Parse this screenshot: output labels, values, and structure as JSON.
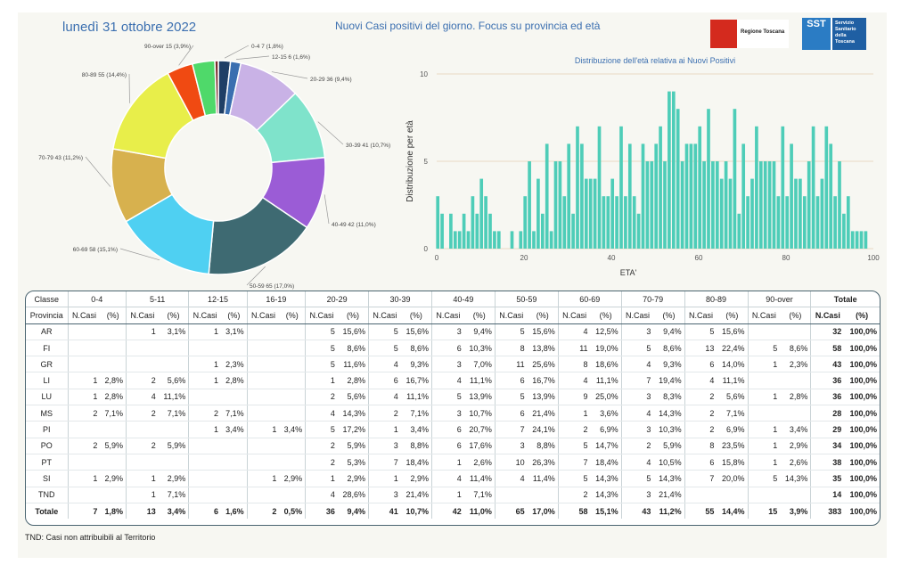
{
  "header": {
    "date": "lunedì 31 ottobre 2022",
    "headline": "Nuovi Casi positivi del giorno. Focus su provincia ed età",
    "logo_regione": "Regione Toscana",
    "logo_sst": "SST",
    "logo_sst_text": "Servizio Sanitario della Toscana"
  },
  "chart_data": [
    {
      "type": "pie",
      "title": "",
      "categories": [
        "0-4",
        "12-15",
        "20-29",
        "30-39",
        "40-49",
        "50-59",
        "60-69",
        "70-79",
        "80-89",
        "90-over",
        "5-11",
        "16-19"
      ],
      "slice_labels": [
        "0-4 7 (1,8%)",
        "12-15 6 (1,6%)",
        "20-29 36 (9,4%)",
        "30-39 41 (10,7%)",
        "40-49 42 (11,0%)",
        "50-59 65 (17,0%)",
        "60-69 58 (15,1%)",
        "70-79 43 (11,2%)",
        "80-89 55 (14,4%)",
        "90-over 15 (3,9%)",
        "",
        ""
      ],
      "values": [
        7,
        6,
        36,
        41,
        42,
        65,
        58,
        43,
        55,
        15,
        13,
        2
      ],
      "colors": [
        "#1f3f66",
        "#3b6fb0",
        "#c9b2e6",
        "#7fe3cb",
        "#9b5cd6",
        "#3e6a72",
        "#4fd0f2",
        "#d7b14e",
        "#e8ee4a",
        "#f04a12",
        "#4fd96a",
        "#7a2a2a"
      ],
      "hole": true
    },
    {
      "type": "bar",
      "title": "Distribuzione dell'età relativa ai Nuovi Positivi",
      "xlabel": "ETA'",
      "ylabel": "Distribuzione per età",
      "xlim": [
        0,
        100
      ],
      "ylim": [
        0,
        10
      ],
      "xticks": [
        0,
        20,
        40,
        60,
        80,
        100
      ],
      "yticks": [
        0,
        5,
        10
      ],
      "color": "#4ecdb8",
      "x": [
        0,
        1,
        2,
        3,
        4,
        5,
        6,
        7,
        8,
        9,
        10,
        11,
        12,
        13,
        14,
        15,
        16,
        17,
        18,
        19,
        20,
        21,
        22,
        23,
        24,
        25,
        26,
        27,
        28,
        29,
        30,
        31,
        32,
        33,
        34,
        35,
        36,
        37,
        38,
        39,
        40,
        41,
        42,
        43,
        44,
        45,
        46,
        47,
        48,
        49,
        50,
        51,
        52,
        53,
        54,
        55,
        56,
        57,
        58,
        59,
        60,
        61,
        62,
        63,
        64,
        65,
        66,
        67,
        68,
        69,
        70,
        71,
        72,
        73,
        74,
        75,
        76,
        77,
        78,
        79,
        80,
        81,
        82,
        83,
        84,
        85,
        86,
        87,
        88,
        89,
        90,
        91,
        92,
        93,
        94,
        95,
        96,
        97,
        98,
        99
      ],
      "values": [
        3,
        2,
        0,
        2,
        1,
        1,
        2,
        1,
        3,
        2,
        4,
        3,
        2,
        1,
        1,
        0,
        0,
        1,
        0,
        1,
        3,
        5,
        1,
        4,
        2,
        6,
        1,
        5,
        5,
        3,
        6,
        2,
        7,
        6,
        4,
        4,
        4,
        7,
        3,
        3,
        4,
        3,
        7,
        3,
        6,
        3,
        2,
        6,
        5,
        5,
        6,
        7,
        5,
        9,
        9,
        8,
        5,
        6,
        6,
        6,
        7,
        5,
        8,
        5,
        5,
        4,
        5,
        4,
        8,
        2,
        6,
        3,
        4,
        7,
        5,
        5,
        5,
        5,
        3,
        7,
        3,
        6,
        4,
        4,
        3,
        5,
        7,
        3,
        4,
        7,
        6,
        3,
        5,
        2,
        3,
        1,
        1,
        1,
        1,
        0
      ]
    },
    {
      "type": "table",
      "columns_group": [
        "Classe",
        "0-4",
        "5-11",
        "12-15",
        "16-19",
        "20-29",
        "30-39",
        "40-49",
        "50-59",
        "60-69",
        "70-79",
        "80-89",
        "90-over",
        "Totale"
      ],
      "sub_headers": [
        "Provincia",
        "N.Casi",
        "(%)"
      ],
      "rows": [
        {
          "prov": "AR",
          "cells": [
            "",
            "",
            "1",
            "3,1%",
            "1",
            "3,1%",
            "",
            "",
            "5",
            "15,6%",
            "5",
            "15,6%",
            "3",
            "9,4%",
            "5",
            "15,6%",
            "4",
            "12,5%",
            "3",
            "9,4%",
            "5",
            "15,6%",
            "",
            ""
          ],
          "tot": "32",
          "totp": "100,0%"
        },
        {
          "prov": "FI",
          "cells": [
            "",
            "",
            "",
            "",
            "",
            "",
            "",
            "",
            "5",
            "8,6%",
            "5",
            "8,6%",
            "6",
            "10,3%",
            "8",
            "13,8%",
            "11",
            "19,0%",
            "5",
            "8,6%",
            "13",
            "22,4%",
            "5",
            "8,6%"
          ],
          "tot": "58",
          "totp": "100,0%"
        },
        {
          "prov": "GR",
          "cells": [
            "",
            "",
            "",
            "",
            "1",
            "2,3%",
            "",
            "",
            "5",
            "11,6%",
            "4",
            "9,3%",
            "3",
            "7,0%",
            "11",
            "25,6%",
            "8",
            "18,6%",
            "4",
            "9,3%",
            "6",
            "14,0%",
            "1",
            "2,3%"
          ],
          "tot": "43",
          "totp": "100,0%"
        },
        {
          "prov": "LI",
          "cells": [
            "1",
            "2,8%",
            "2",
            "5,6%",
            "1",
            "2,8%",
            "",
            "",
            "1",
            "2,8%",
            "6",
            "16,7%",
            "4",
            "11,1%",
            "6",
            "16,7%",
            "4",
            "11,1%",
            "7",
            "19,4%",
            "4",
            "11,1%",
            "",
            ""
          ],
          "tot": "36",
          "totp": "100,0%"
        },
        {
          "prov": "LU",
          "cells": [
            "1",
            "2,8%",
            "4",
            "11,1%",
            "",
            "",
            "",
            "",
            "2",
            "5,6%",
            "4",
            "11,1%",
            "5",
            "13,9%",
            "5",
            "13,9%",
            "9",
            "25,0%",
            "3",
            "8,3%",
            "2",
            "5,6%",
            "1",
            "2,8%"
          ],
          "tot": "36",
          "totp": "100,0%"
        },
        {
          "prov": "MS",
          "cells": [
            "2",
            "7,1%",
            "2",
            "7,1%",
            "2",
            "7,1%",
            "",
            "",
            "4",
            "14,3%",
            "2",
            "7,1%",
            "3",
            "10,7%",
            "6",
            "21,4%",
            "1",
            "3,6%",
            "4",
            "14,3%",
            "2",
            "7,1%",
            "",
            ""
          ],
          "tot": "28",
          "totp": "100,0%"
        },
        {
          "prov": "PI",
          "cells": [
            "",
            "",
            "",
            "",
            "1",
            "3,4%",
            "1",
            "3,4%",
            "5",
            "17,2%",
            "1",
            "3,4%",
            "6",
            "20,7%",
            "7",
            "24,1%",
            "2",
            "6,9%",
            "3",
            "10,3%",
            "2",
            "6,9%",
            "1",
            "3,4%"
          ],
          "tot": "29",
          "totp": "100,0%"
        },
        {
          "prov": "PO",
          "cells": [
            "2",
            "5,9%",
            "2",
            "5,9%",
            "",
            "",
            "",
            "",
            "2",
            "5,9%",
            "3",
            "8,8%",
            "6",
            "17,6%",
            "3",
            "8,8%",
            "5",
            "14,7%",
            "2",
            "5,9%",
            "8",
            "23,5%",
            "1",
            "2,9%"
          ],
          "tot": "34",
          "totp": "100,0%"
        },
        {
          "prov": "PT",
          "cells": [
            "",
            "",
            "",
            "",
            "",
            "",
            "",
            "",
            "2",
            "5,3%",
            "7",
            "18,4%",
            "1",
            "2,6%",
            "10",
            "26,3%",
            "7",
            "18,4%",
            "4",
            "10,5%",
            "6",
            "15,8%",
            "1",
            "2,6%"
          ],
          "tot": "38",
          "totp": "100,0%"
        },
        {
          "prov": "SI",
          "cells": [
            "1",
            "2,9%",
            "1",
            "2,9%",
            "",
            "",
            "1",
            "2,9%",
            "1",
            "2,9%",
            "1",
            "2,9%",
            "4",
            "11,4%",
            "4",
            "11,4%",
            "5",
            "14,3%",
            "5",
            "14,3%",
            "7",
            "20,0%",
            "5",
            "14,3%"
          ],
          "tot": "35",
          "totp": "100,0%"
        },
        {
          "prov": "TND",
          "cells": [
            "",
            "",
            "1",
            "7,1%",
            "",
            "",
            "",
            "",
            "4",
            "28,6%",
            "3",
            "21,4%",
            "1",
            "7,1%",
            "",
            "",
            "2",
            "14,3%",
            "3",
            "21,4%",
            "",
            "",
            "",
            ""
          ],
          "tot": "14",
          "totp": "100,0%"
        }
      ],
      "total_row": {
        "prov": "Totale",
        "cells": [
          "7",
          "1,8%",
          "13",
          "3,4%",
          "6",
          "1,6%",
          "2",
          "0,5%",
          "36",
          "9,4%",
          "41",
          "10,7%",
          "42",
          "11,0%",
          "65",
          "17,0%",
          "58",
          "15,1%",
          "43",
          "11,2%",
          "55",
          "14,4%",
          "15",
          "3,9%"
        ],
        "tot": "383",
        "totp": "100,0%"
      }
    }
  ],
  "footnote": "TND:  Casi non attribuibili al Territorio"
}
